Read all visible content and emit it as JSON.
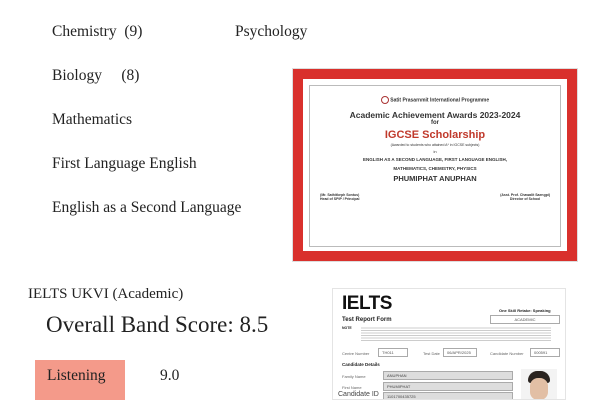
{
  "subjects": [
    {
      "name": "Chemistry",
      "count": "(9)"
    },
    {
      "name": "Psychology",
      "count": ""
    },
    {
      "name": "Biology",
      "count": "(8)"
    },
    {
      "name": "Mathematics",
      "count": ""
    },
    {
      "name": "First Language English",
      "count": ""
    },
    {
      "name": "English as a Second Language",
      "count": ""
    }
  ],
  "certificate": {
    "school": "Satit Prasarnmit International Programme",
    "title": "Academic Achievement Awards 2023-2024",
    "for": "for",
    "award": "IGCSE Scholarship",
    "note": "(Awarded to students who attained A* in IGCSE subjects)",
    "in": "in",
    "subjects_line1": "ENGLISH AS A SECOND LANGUAGE, FIRST LANGUAGE ENGLISH,",
    "subjects_line2": "MATHEMATICS, CHEMISTRY, PHYSICS",
    "recipient": "PHUMIPHAT ANUPHAN",
    "sig_left_name": "(Mr. Sathitkeph Sontus)",
    "sig_left_role": "Head of SPIP / Principal",
    "sig_right_name": "(Asst. Prof. Chawalit Saengpi)",
    "sig_right_role": "Director of School",
    "accent": "#d9302c"
  },
  "ielts": {
    "heading": "IELTS UKVI (Academic)",
    "overall": "Overall Band Score: 8.5",
    "scores": [
      {
        "skill": "Listening",
        "score": "9.0"
      }
    ],
    "highlight_color": "#f49a8a",
    "form": {
      "logo": "IELTS",
      "title": "Test Report Form",
      "retake": "One Skill Retake: Speaking",
      "module": "ACADEMIC",
      "note_label": "NOTE",
      "centre_label": "Centre Number",
      "centre": "TH011",
      "date_label": "Test Date",
      "date": "06/APR/2025",
      "cand_label": "Candidate Number",
      "cand": "000591",
      "details": "Candidate Details",
      "family_label": "Family Name",
      "family": "ANUPHAN",
      "first_label": "First Name",
      "first": "PHUMIPHAT",
      "id_label": "Candidate ID",
      "id": "1101700435725"
    }
  }
}
